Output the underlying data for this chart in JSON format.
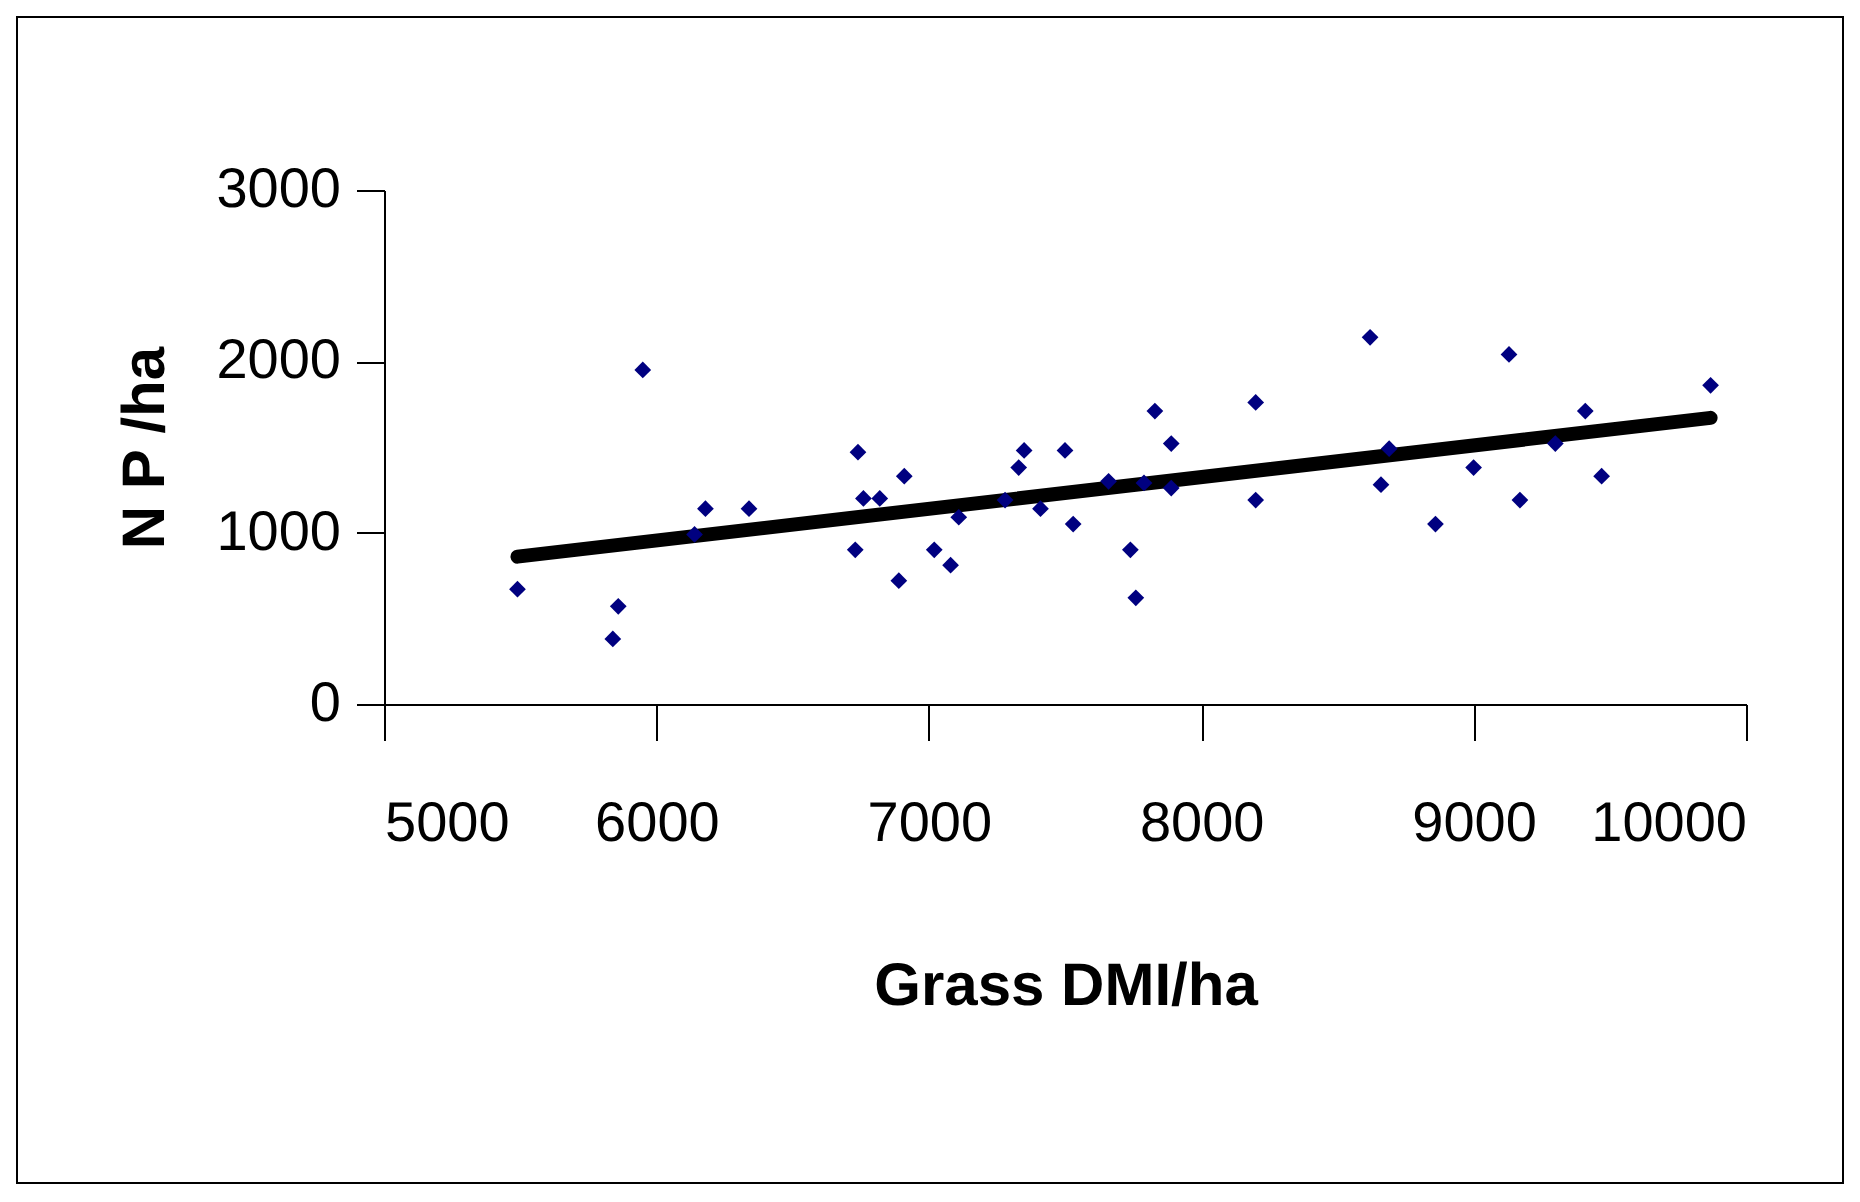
{
  "chart_data": {
    "type": "scatter",
    "xlabel": "Grass DMI/ha",
    "ylabel": "N P /ha",
    "xlim": [
      5000,
      10000
    ],
    "xticks": [
      5000,
      6000,
      7000,
      8000,
      9000,
      10000
    ],
    "ylim": [
      0,
      3000
    ],
    "yticks": [
      0,
      1000,
      2000,
      3000
    ],
    "grid": false,
    "series": [
      {
        "color": "#000080",
        "marker": "diamond",
        "x": [
          5490,
          5950,
          5840,
          5860,
          6140,
          6180,
          6340,
          6740,
          6730,
          6760,
          6820,
          6910,
          6890,
          7020,
          7080,
          7110,
          7280,
          7330,
          7350,
          7410,
          7500,
          7530,
          7660,
          7740,
          7760,
          7790,
          7830,
          7890,
          7890,
          8200,
          8200,
          8620,
          8660,
          8690,
          8860,
          9000,
          9130,
          9170,
          9300,
          9410,
          9470,
          9870
        ],
        "values": [
          670,
          1950,
          380,
          570,
          990,
          1140,
          1140,
          1470,
          900,
          1200,
          1200,
          1330,
          720,
          900,
          810,
          1090,
          1190,
          1380,
          1480,
          1140,
          1480,
          1050,
          1300,
          900,
          620,
          1290,
          1710,
          1520,
          1260,
          1760,
          1190,
          2140,
          1280,
          1490,
          1050,
          1380,
          2040,
          1190,
          1520,
          1710,
          1330,
          1860
        ]
      },
      {
        "type": "line",
        "color": "#000000",
        "line_style": "solid",
        "x": [
          5490,
          9870
        ],
        "values": [
          860,
          1670
        ]
      }
    ]
  }
}
